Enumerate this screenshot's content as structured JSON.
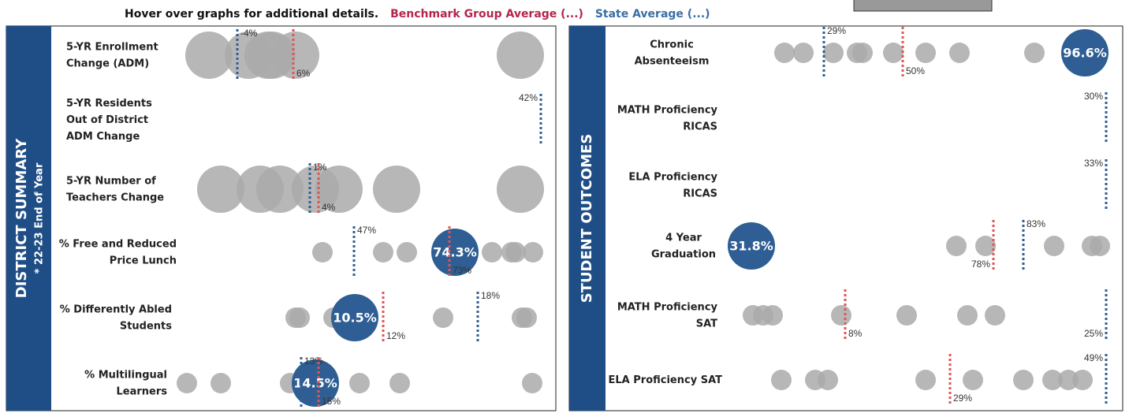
{
  "header": {
    "hint": "Hover over graphs for additional details.",
    "benchmark": "Benchmark Group Average (...)",
    "state": "State Average (...)"
  },
  "panels": [
    {
      "title": "DISTRICT SUMMARY",
      "subtitle": "* 22-23 End of Year",
      "rows": [
        {
          "label": [
            "5-YR Enrollment",
            "Change (ADM)"
          ],
          "state": "-4%",
          "benchmark": "6%"
        },
        {
          "label": [
            "5-YR Residents",
            "Out of District",
            "ADM Change"
          ],
          "state": "42%"
        },
        {
          "label": [
            "5-YR Number of",
            "Teachers Change"
          ],
          "state": "1%",
          "benchmark": "4%"
        },
        {
          "label": [
            "% Free and Reduced",
            "Price Lunch"
          ],
          "state": "47%",
          "benchmark": "73%",
          "district": "74.3%"
        },
        {
          "label": [
            "% Differently Abled",
            "Students"
          ],
          "state": "18%",
          "benchmark": "12%",
          "district": "10.5%"
        },
        {
          "label": [
            "% Multilingual",
            "Learners"
          ],
          "state": "13%",
          "benchmark": "15%",
          "district": "14.5%"
        }
      ]
    },
    {
      "title": "STUDENT OUTCOMES",
      "rows": [
        {
          "label": [
            "Chronic",
            "Absenteeism"
          ],
          "state": "29%",
          "benchmark": "50%",
          "district": "96.6%"
        },
        {
          "label": [
            "MATH Proficiency",
            "RICAS"
          ],
          "state": "30%"
        },
        {
          "label": [
            "ELA Proficiency",
            "RICAS"
          ],
          "state": "33%"
        },
        {
          "label": [
            "4 Year",
            "Graduation"
          ],
          "state": "83%",
          "benchmark": "78%",
          "district": "31.8%"
        },
        {
          "label": [
            "MATH Proficiency",
            "SAT"
          ],
          "state": "25%",
          "benchmark": "8%"
        },
        {
          "label": [
            "ELA Proficiency SAT"
          ],
          "state": "49%",
          "benchmark": "29%"
        }
      ]
    }
  ]
}
